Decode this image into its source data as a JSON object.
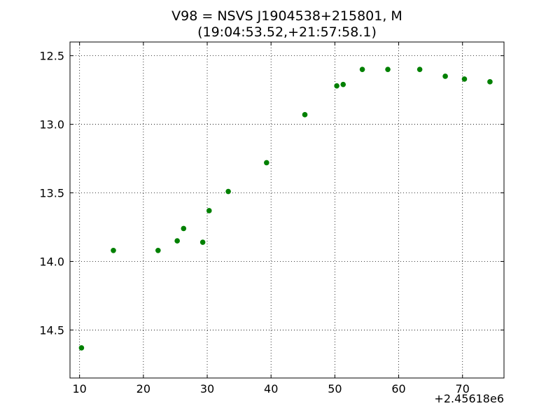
{
  "chart_data": {
    "type": "scatter",
    "title_line1": "V98 = NSVS J1904538+215801, M",
    "title_line2": "(19:04:53.52,+21:57:58.1)",
    "x_offset_label": "+2.45618e6",
    "xlabel": "",
    "ylabel": "",
    "xlim": [
      8.5,
      76.5
    ],
    "ylim": [
      14.85,
      12.4
    ],
    "y_inverted": true,
    "grid": true,
    "x_ticks": [
      10,
      20,
      30,
      40,
      50,
      60,
      70
    ],
    "x_tick_labels": [
      "10",
      "20",
      "30",
      "40",
      "50",
      "60",
      "70"
    ],
    "y_ticks": [
      12.5,
      13.0,
      13.5,
      14.0,
      14.5
    ],
    "y_tick_labels": [
      "12.5",
      "13.0",
      "13.5",
      "14.0",
      "14.5"
    ],
    "marker_color": "#008000",
    "series": [
      {
        "points": [
          {
            "x": 10.3,
            "y": 14.63
          },
          {
            "x": 15.3,
            "y": 13.92
          },
          {
            "x": 22.3,
            "y": 13.92
          },
          {
            "x": 25.3,
            "y": 13.85
          },
          {
            "x": 26.3,
            "y": 13.76
          },
          {
            "x": 29.3,
            "y": 13.86
          },
          {
            "x": 30.3,
            "y": 13.63
          },
          {
            "x": 33.3,
            "y": 13.49
          },
          {
            "x": 39.3,
            "y": 13.28
          },
          {
            "x": 45.3,
            "y": 12.93
          },
          {
            "x": 50.3,
            "y": 12.72
          },
          {
            "x": 51.3,
            "y": 12.71
          },
          {
            "x": 54.3,
            "y": 12.6
          },
          {
            "x": 58.3,
            "y": 12.6
          },
          {
            "x": 63.3,
            "y": 12.6
          },
          {
            "x": 67.3,
            "y": 12.65
          },
          {
            "x": 70.3,
            "y": 12.67
          },
          {
            "x": 74.3,
            "y": 12.69
          }
        ]
      }
    ]
  }
}
